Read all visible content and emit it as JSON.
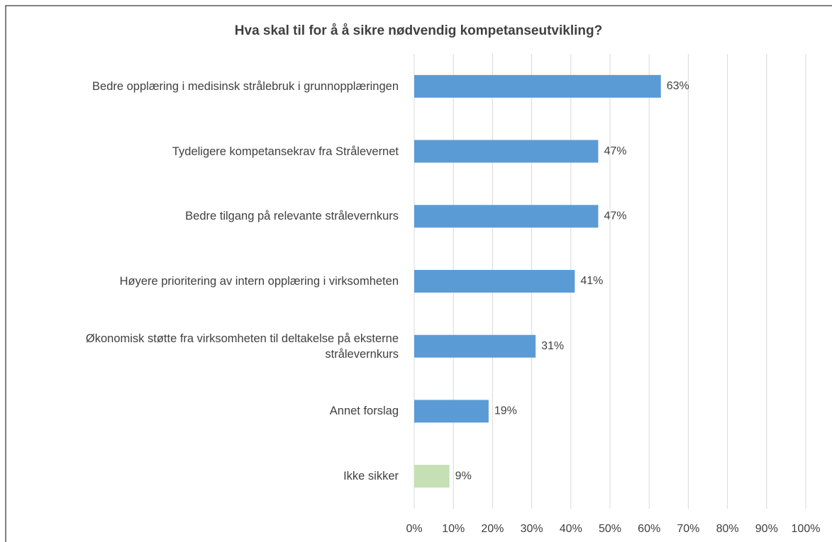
{
  "chart_data": {
    "type": "barh",
    "title": "Hva skal til for å å sikre nødvendig kompetanseutvikling?",
    "categories": [
      "Bedre opplæring i medisinsk strålebruk i grunnopplæringen",
      "Tydeligere kompetansekrav fra Strålevernet",
      "Bedre tilgang på relevante strålevernkurs",
      "Høyere prioritering av intern opplæring i virksomheten",
      "Økonomisk støtte fra virksomheten til deltakelse på eksterne strålevernkurs",
      "Annet forslag",
      "Ikke sikker"
    ],
    "values": [
      63,
      47,
      47,
      41,
      31,
      19,
      9
    ],
    "value_labels": [
      "63%",
      "47%",
      "47%",
      "41%",
      "31%",
      "19%",
      "9%"
    ],
    "colors": [
      "#5b9bd5",
      "#5b9bd5",
      "#5b9bd5",
      "#5b9bd5",
      "#5b9bd5",
      "#5b9bd5",
      "#c5e0b4"
    ],
    "xlim": [
      0,
      100
    ],
    "xticks": [
      {
        "value": 0,
        "label": "0%"
      },
      {
        "value": 10,
        "label": "10%"
      },
      {
        "value": 20,
        "label": "20%"
      },
      {
        "value": 30,
        "label": "30%"
      },
      {
        "value": 40,
        "label": "40%"
      },
      {
        "value": 50,
        "label": "50%"
      },
      {
        "value": 60,
        "label": "60%"
      },
      {
        "value": 70,
        "label": "70%"
      },
      {
        "value": 80,
        "label": "80%"
      },
      {
        "value": 90,
        "label": "90%"
      },
      {
        "value": 100,
        "label": "100%"
      }
    ],
    "grid": true
  }
}
